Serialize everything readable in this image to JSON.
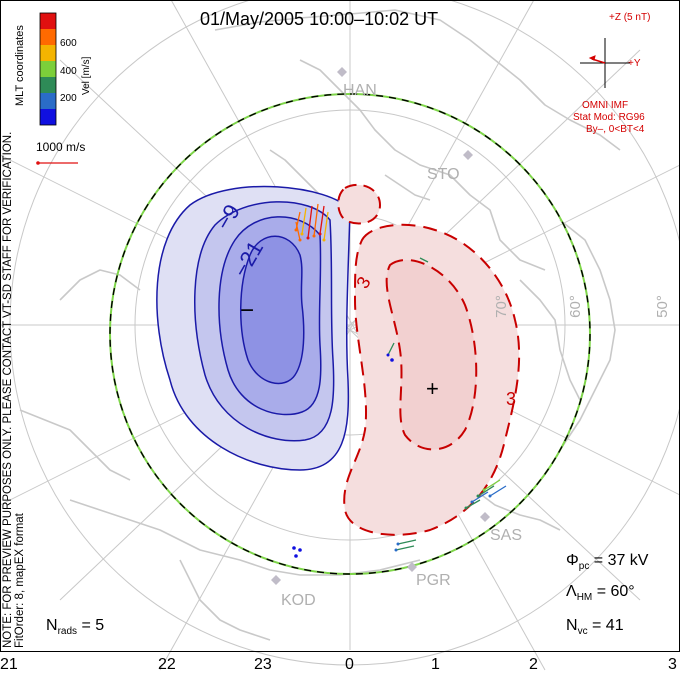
{
  "title": "01/May/2005 10:00–10:02 UT",
  "notice": {
    "line1": "NOTE: FOR PREVIEW PURPOSES ONLY. PLEASE CONTACT VT-SD STAFF FOR VERIFICATION.",
    "line2": "FitOrder: 8, mapEX format"
  },
  "coords_label": "MLT coordinates",
  "colorbar": {
    "label": "Vel [m/s]",
    "ticks": [
      "600",
      "400",
      "200"
    ],
    "colors": [
      "#e01010",
      "#ff6a00",
      "#f4b400",
      "#7ccf3a",
      "#2e8b57",
      "#2a6cc8",
      "#1010e0"
    ]
  },
  "ref_vector": "1000 m/s",
  "imf": {
    "z_label": "+Z (5 nT)",
    "y_label": "+Y",
    "source": "OMNI IMF",
    "model": "Stat Mod: RG96",
    "condition": "By–, 0<BT<4"
  },
  "contours": {
    "neg_labels": [
      "−9",
      "−21"
    ],
    "pos_labels": [
      "3",
      "3"
    ],
    "min_marker": "−",
    "max_marker": "+"
  },
  "latitude_labels": [
    "50°",
    "60°",
    "70°"
  ],
  "stations": [
    "HAN",
    "STO",
    "SAS",
    "PGR",
    "KOD"
  ],
  "stats": {
    "phi_pc_sym": "Φ",
    "phi_pc_sub": "pc",
    "phi_pc_value": " = 37 kV",
    "lambda_sym": "Λ",
    "lambda_sub": "HM",
    "lambda_value": " = 60°",
    "nvc_sym": "N",
    "nvc_sub": "vc",
    "nvc_value": " = 41",
    "nrads_sym": "N",
    "nrads_sub": "rads",
    "nrads_value": " = 5"
  },
  "mlt_labels": [
    "21",
    "22",
    "23",
    "0",
    "1",
    "2",
    "3"
  ],
  "colors": {
    "negative": "#1a1aa8",
    "positive": "#c80000",
    "hmb": "#7fd64a",
    "coast": "#c9c9c9",
    "grid": "#c8c8c8"
  }
}
